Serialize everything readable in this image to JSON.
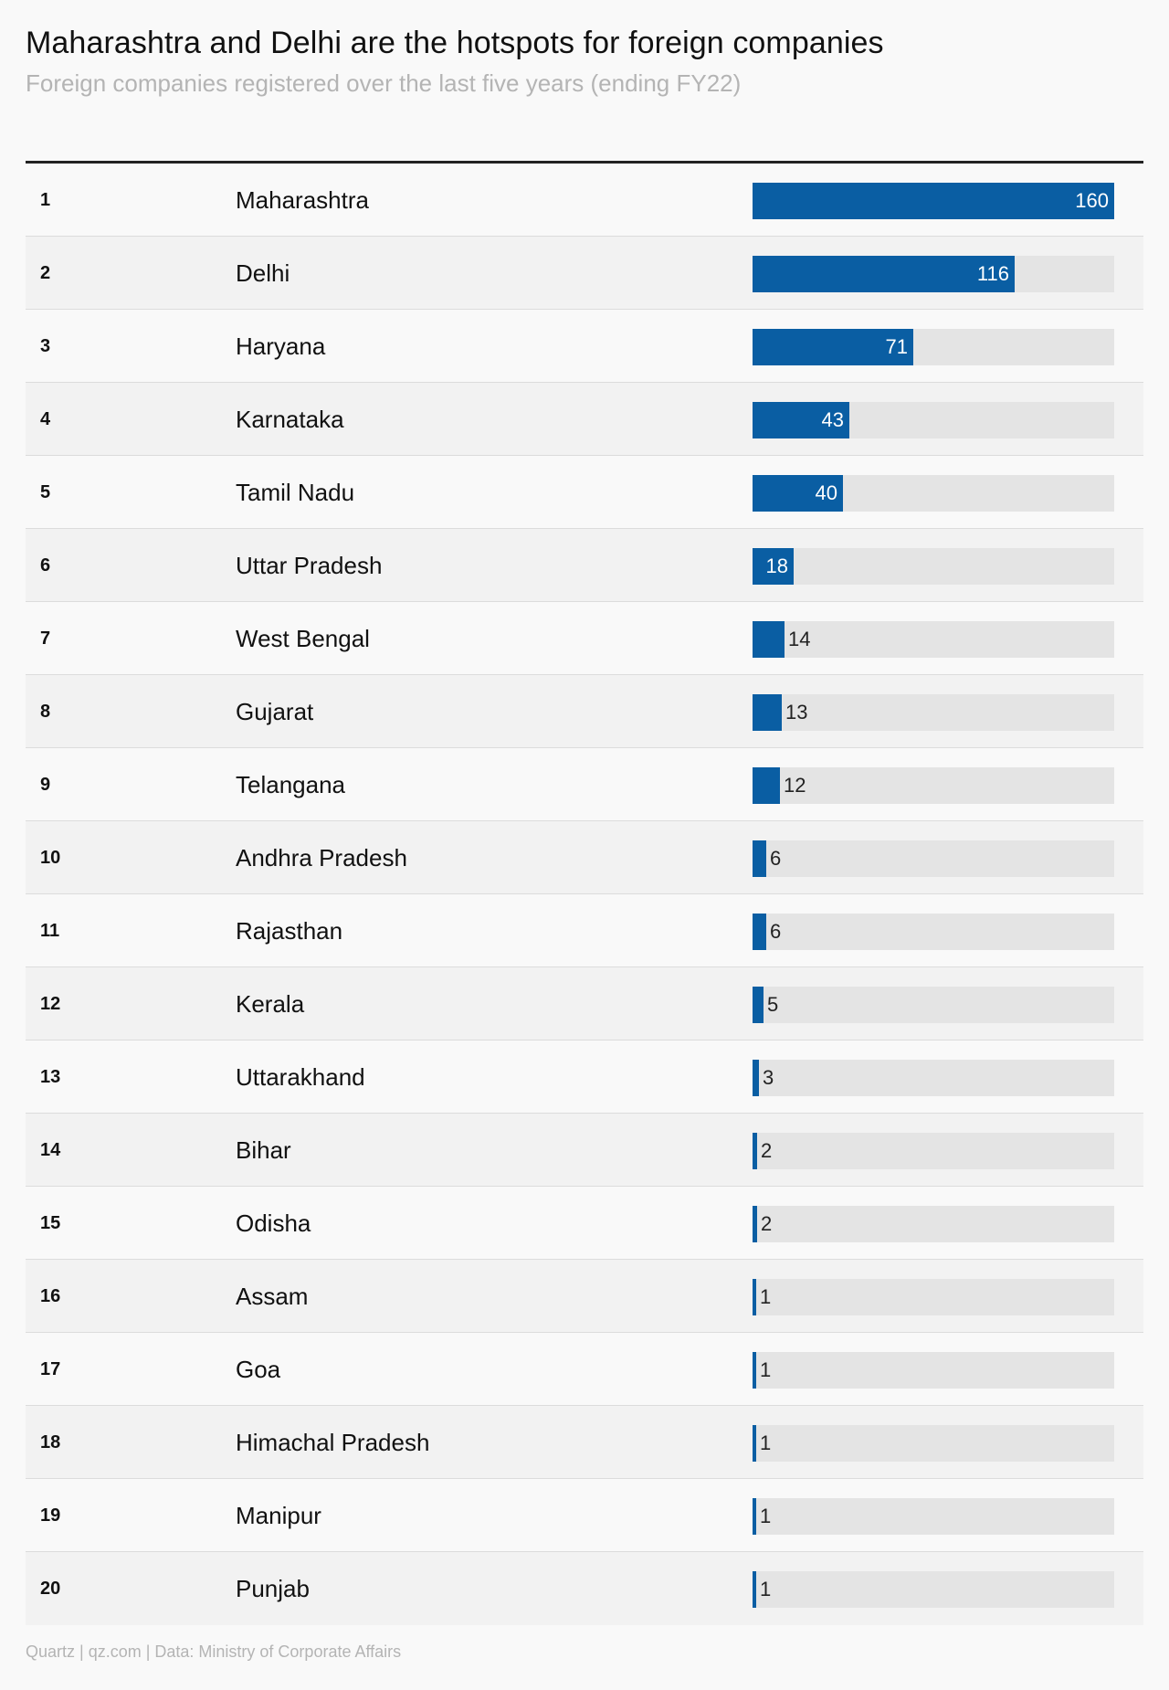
{
  "title": "Maharashtra and Delhi are the hotspots for foreign companies",
  "subtitle": "Foreign companies registered over the last five years (ending FY22)",
  "source": "Quartz | qz.com | Data: Ministry of Corporate Affairs",
  "colors": {
    "bar": "#0a5ea3",
    "track": "#e4e4e4",
    "rule": "#222222"
  },
  "chart_data": {
    "type": "bar",
    "orientation": "horizontal",
    "title": "Maharashtra and Delhi are the hotspots for foreign companies",
    "subtitle": "Foreign companies registered over the last five years (ending FY22)",
    "xlim": [
      0,
      160
    ],
    "grid": false,
    "rows": [
      {
        "rank": "1",
        "state": "Maharashtra",
        "value": 160
      },
      {
        "rank": "2",
        "state": "Delhi",
        "value": 116
      },
      {
        "rank": "3",
        "state": "Haryana",
        "value": 71
      },
      {
        "rank": "4",
        "state": "Karnataka",
        "value": 43
      },
      {
        "rank": "5",
        "state": "Tamil Nadu",
        "value": 40
      },
      {
        "rank": "6",
        "state": "Uttar Pradesh",
        "value": 18
      },
      {
        "rank": "7",
        "state": "West Bengal",
        "value": 14
      },
      {
        "rank": "8",
        "state": "Gujarat",
        "value": 13
      },
      {
        "rank": "9",
        "state": "Telangana",
        "value": 12
      },
      {
        "rank": "10",
        "state": "Andhra Pradesh",
        "value": 6
      },
      {
        "rank": "11",
        "state": "Rajasthan",
        "value": 6
      },
      {
        "rank": "12",
        "state": "Kerala",
        "value": 5
      },
      {
        "rank": "13",
        "state": "Uttarakhand",
        "value": 3
      },
      {
        "rank": "14",
        "state": "Bihar",
        "value": 2
      },
      {
        "rank": "15",
        "state": "Odisha",
        "value": 2
      },
      {
        "rank": "16",
        "state": "Assam",
        "value": 1
      },
      {
        "rank": "17",
        "state": "Goa",
        "value": 1
      },
      {
        "rank": "18",
        "state": "Himachal Pradesh",
        "value": 1
      },
      {
        "rank": "19",
        "state": "Manipur",
        "value": 1
      },
      {
        "rank": "20",
        "state": "Punjab",
        "value": 1
      }
    ]
  }
}
